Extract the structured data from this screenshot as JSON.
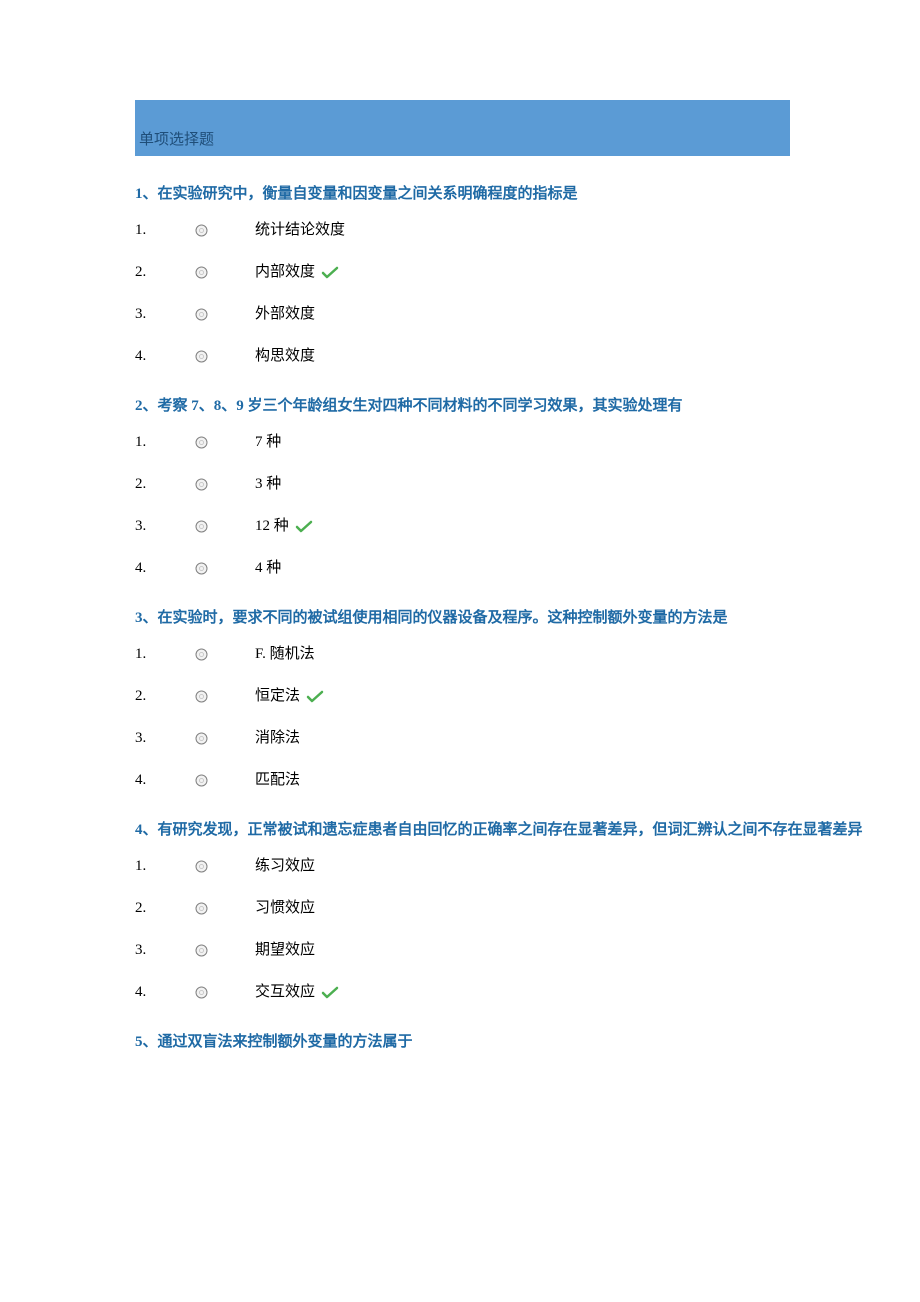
{
  "colors": {
    "header_bg": "#5b9bd5",
    "header_text": "#1f4e79",
    "question_title": "#1f6aa5",
    "body_text": "#000000",
    "background": "#ffffff",
    "check_stroke": "#4caf50",
    "radio_stroke": "#808080",
    "radio_fill": "#f2f2f2"
  },
  "section_header": "单项选择题",
  "questions": [
    {
      "title": "1、在实验研究中，衡量自变量和因变量之间关系明确程度的指标是",
      "options": [
        {
          "num": "1.",
          "text": "统计结论效度",
          "correct": false
        },
        {
          "num": "2.",
          "text": "内部效度",
          "correct": true
        },
        {
          "num": "3.",
          "text": "外部效度",
          "correct": false
        },
        {
          "num": "4.",
          "text": "构思效度",
          "correct": false
        }
      ]
    },
    {
      "title": "2、考察 7、8、9 岁三个年龄组女生对四种不同材料的不同学习效果，其实验处理有",
      "options": [
        {
          "num": "1.",
          "text": "7 种",
          "correct": false
        },
        {
          "num": "2.",
          "text": "3 种",
          "correct": false
        },
        {
          "num": "3.",
          "text": "12 种",
          "correct": true
        },
        {
          "num": "4.",
          "text": "4 种",
          "correct": false
        }
      ]
    },
    {
      "title": "3、在实验时，要求不同的被试组使用相同的仪器设备及程序。这种控制额外变量的方法是",
      "options": [
        {
          "num": "1.",
          "text": "F. 随机法",
          "correct": false
        },
        {
          "num": "2.",
          "text": "恒定法",
          "correct": true
        },
        {
          "num": "3.",
          "text": "消除法",
          "correct": false
        },
        {
          "num": "4.",
          "text": "匹配法",
          "correct": false
        }
      ]
    },
    {
      "title": "4、有研究发现，正常被试和遗忘症患者自由回忆的正确率之间存在显著差异，但词汇辨认之间不存在显著差异",
      "options": [
        {
          "num": "1.",
          "text": "练习效应",
          "correct": false
        },
        {
          "num": "2.",
          "text": "习惯效应",
          "correct": false
        },
        {
          "num": "3.",
          "text": "期望效应",
          "correct": false
        },
        {
          "num": "4.",
          "text": "交互效应",
          "correct": true
        }
      ]
    },
    {
      "title": "5、通过双盲法来控制额外变量的方法属于",
      "options": []
    }
  ]
}
